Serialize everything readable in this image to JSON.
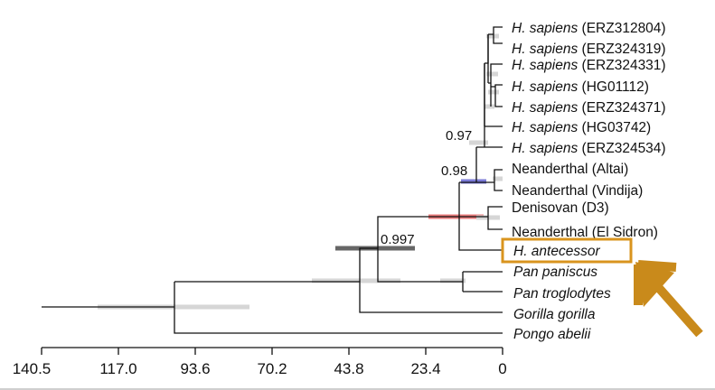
{
  "figure": {
    "type": "phylogenetic_tree",
    "x_axis": {
      "unit": "time before present (arbitrary, reversed)",
      "ticks": [
        "140.5",
        "117.0",
        "93.6",
        "70.2",
        "43.8",
        "23.4",
        "0"
      ]
    },
    "taxa": [
      {
        "id": "t1",
        "genus": "H. sapiens",
        "suffix": " (ERZ312804)",
        "italic_all": false
      },
      {
        "id": "t2",
        "genus": "H. sapiens",
        "suffix": " (ERZ324319)",
        "italic_all": false
      },
      {
        "id": "t3",
        "genus": "H. sapiens",
        "suffix": " (ERZ324331)",
        "italic_all": false
      },
      {
        "id": "t4",
        "genus": "H. sapiens",
        "suffix": " (HG01112)",
        "italic_all": false
      },
      {
        "id": "t5",
        "genus": "H. sapiens",
        "suffix": " (ERZ324371)",
        "italic_all": false
      },
      {
        "id": "t6",
        "genus": "H. sapiens",
        "suffix": " (HG03742)",
        "italic_all": false
      },
      {
        "id": "t7",
        "genus": "H. sapiens",
        "suffix": " (ERZ324534)",
        "italic_all": false
      },
      {
        "id": "t8",
        "genus": "",
        "suffix": "Neanderthal (Altai)",
        "italic_all": false
      },
      {
        "id": "t9",
        "genus": "",
        "suffix": "Neanderthal (Vindija)",
        "italic_all": false
      },
      {
        "id": "t10",
        "genus": "",
        "suffix": "Denisovan (D3)",
        "italic_all": false
      },
      {
        "id": "t11",
        "genus": "",
        "suffix": "Neanderthal (El Sidron)",
        "italic_all": false
      },
      {
        "id": "t12",
        "genus": "H. antecessor",
        "suffix": "",
        "italic_all": true
      },
      {
        "id": "t13",
        "genus": "Pan paniscus",
        "suffix": "",
        "italic_all": true
      },
      {
        "id": "t14",
        "genus": "Pan troglodytes",
        "suffix": "",
        "italic_all": true
      },
      {
        "id": "t15",
        "genus": "Gorilla gorilla",
        "suffix": "",
        "italic_all": true
      },
      {
        "id": "t16",
        "genus": "Pongo abelii",
        "suffix": "",
        "italic_all": true
      }
    ],
    "support_values": [
      "0.97",
      "0.98",
      "0.997"
    ],
    "highlight": {
      "taxon": "H. antecessor",
      "color": "#d9941e"
    },
    "colors": {
      "branch": "#111111",
      "ci_default": "#c8c8c8",
      "ci_blue": "#7a7ad6",
      "ci_red": "#e87a7a",
      "ci_dark": "#666666",
      "highlight": "#d9941e"
    }
  }
}
